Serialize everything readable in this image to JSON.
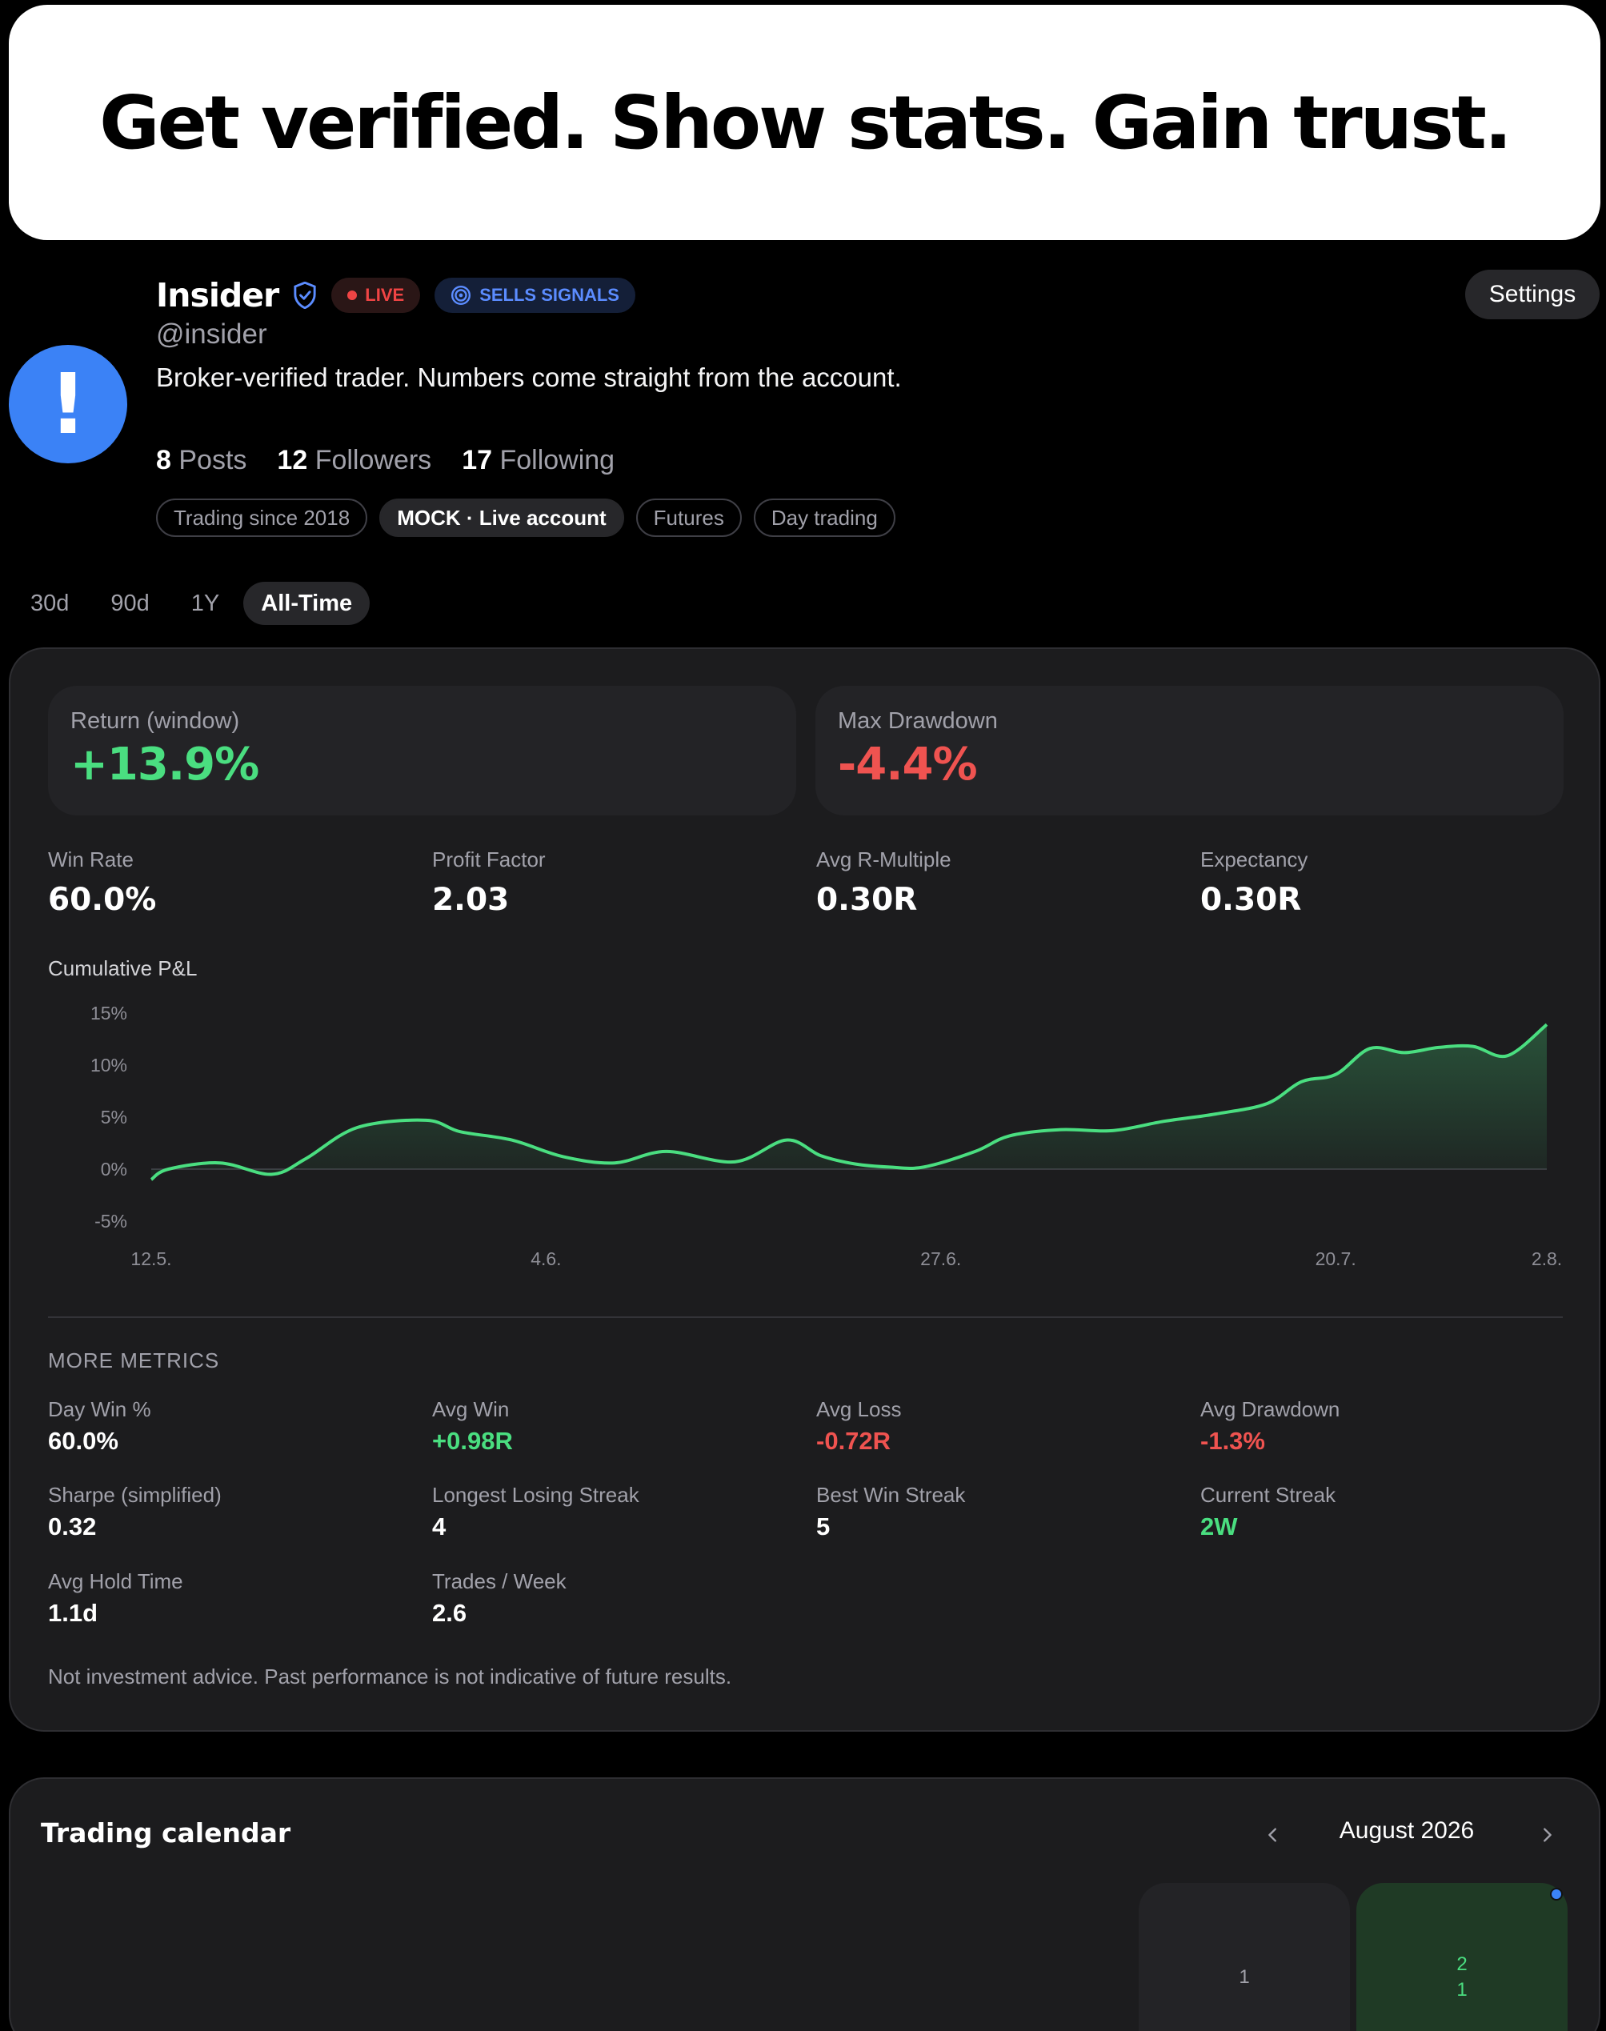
{
  "banner": {
    "headline": "Get verified. Show stats. Gain trust."
  },
  "profile": {
    "avatar_glyph": "!",
    "name": "Insider",
    "live_label": "LIVE",
    "signals_label": "SELLS SIGNALS",
    "handle": "@insider",
    "bio": "Broker-verified trader. Numbers come straight from the account.",
    "posts_count": "8",
    "posts_label": "Posts",
    "followers_count": "12",
    "followers_label": "Followers",
    "following_count": "17",
    "following_label": "Following",
    "tags": [
      "Trading since 2018",
      "MOCK · Live account",
      "Futures",
      "Day trading"
    ],
    "settings_label": "Settings"
  },
  "ranges": [
    "30d",
    "90d",
    "1Y",
    "All-Time"
  ],
  "active_range": "All-Time",
  "stats": {
    "return_label": "Return (window)",
    "return_value": "+13.9%",
    "drawdown_label": "Max Drawdown",
    "drawdown_value": "-4.4%",
    "kpis": [
      {
        "label": "Win Rate",
        "value": "60.0%"
      },
      {
        "label": "Profit Factor",
        "value": "2.03"
      },
      {
        "label": "Avg R-Multiple",
        "value": "0.30R"
      },
      {
        "label": "Expectancy",
        "value": "0.30R"
      }
    ],
    "chart_title": "Cumulative P&L",
    "more_title": "MORE METRICS",
    "metrics": [
      {
        "label": "Day Win %",
        "value": "60.0%",
        "tone": "neutral"
      },
      {
        "label": "Avg Win",
        "value": "+0.98R",
        "tone": "positive"
      },
      {
        "label": "Avg Loss",
        "value": "-0.72R",
        "tone": "negative"
      },
      {
        "label": "Avg Drawdown",
        "value": "-1.3%",
        "tone": "negative"
      },
      {
        "label": "Sharpe (simplified)",
        "value": "0.32",
        "tone": "neutral"
      },
      {
        "label": "Longest Losing Streak",
        "value": "4",
        "tone": "neutral"
      },
      {
        "label": "Best Win Streak",
        "value": "5",
        "tone": "neutral"
      },
      {
        "label": "Current Streak",
        "value": "2W",
        "tone": "positive"
      },
      {
        "label": "Avg Hold Time",
        "value": "1.1d",
        "tone": "neutral"
      },
      {
        "label": "Trades / Week",
        "value": "2.6",
        "tone": "neutral"
      }
    ],
    "disclaimer": "Not investment advice. Past performance is not indicative of future results."
  },
  "chart_data": {
    "type": "area",
    "title": "Cumulative P&L",
    "ylim": [
      -5,
      15
    ],
    "yticks": [
      "15%",
      "10%",
      "5%",
      "0%",
      "-5%"
    ],
    "ytick_values": [
      15,
      10,
      5,
      0,
      -5
    ],
    "xticks": [
      "12.5.",
      "4.6.",
      "27.6.",
      "20.7.",
      "2.8."
    ],
    "xtick_values": [
      0,
      23,
      46,
      69,
      81.3
    ],
    "x": [
      0,
      1,
      4,
      7,
      9,
      12,
      16,
      18,
      21,
      24,
      27,
      30,
      34,
      37,
      39,
      41,
      43,
      45,
      48,
      50,
      53,
      56,
      59,
      62,
      65,
      67,
      69,
      71,
      73,
      75,
      77,
      79,
      81.3
    ],
    "values": [
      -1,
      0,
      0.6,
      -0.5,
      1,
      4,
      4.7,
      3.6,
      2.8,
      1.2,
      0.6,
      1.7,
      0.7,
      2.8,
      1.3,
      0.5,
      0.2,
      0.2,
      1.7,
      3.2,
      3.8,
      3.7,
      4.6,
      5.3,
      6.3,
      8.4,
      9.1,
      11.6,
      11.2,
      11.7,
      11.8,
      10.9,
      13.9
    ],
    "line_color": "#4ade80",
    "grid": false
  },
  "calendar": {
    "title": "Trading calendar",
    "month": "August 2026",
    "days": [
      {
        "day": "1",
        "count": ""
      },
      {
        "day": "2",
        "count": "1"
      }
    ]
  },
  "colors": {
    "positive": "#4ade80",
    "negative": "#ef5350",
    "accent": "#3b82f6",
    "card": "#1c1c1e"
  }
}
